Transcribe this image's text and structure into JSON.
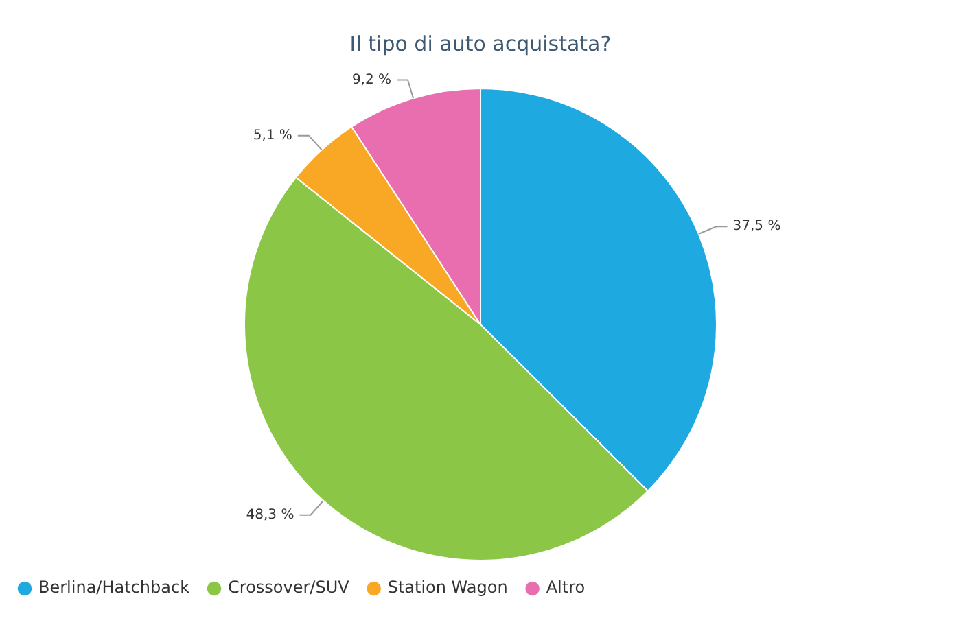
{
  "chart_data": {
    "type": "pie",
    "title": "Il tipo di auto acquistata?",
    "categories": [
      "Berlina/Hatchback",
      "Crossover/SUV",
      "Station Wagon",
      "Altro"
    ],
    "values": [
      37.5,
      48.3,
      5.1,
      9.2
    ],
    "value_labels": [
      "37,5 %",
      "48,3 %",
      "5,1 %",
      "9,2 %"
    ],
    "colors": [
      "#1fa9e1",
      "#8bc646",
      "#f9a825",
      "#e86eb0"
    ],
    "legend": "bottom left"
  }
}
